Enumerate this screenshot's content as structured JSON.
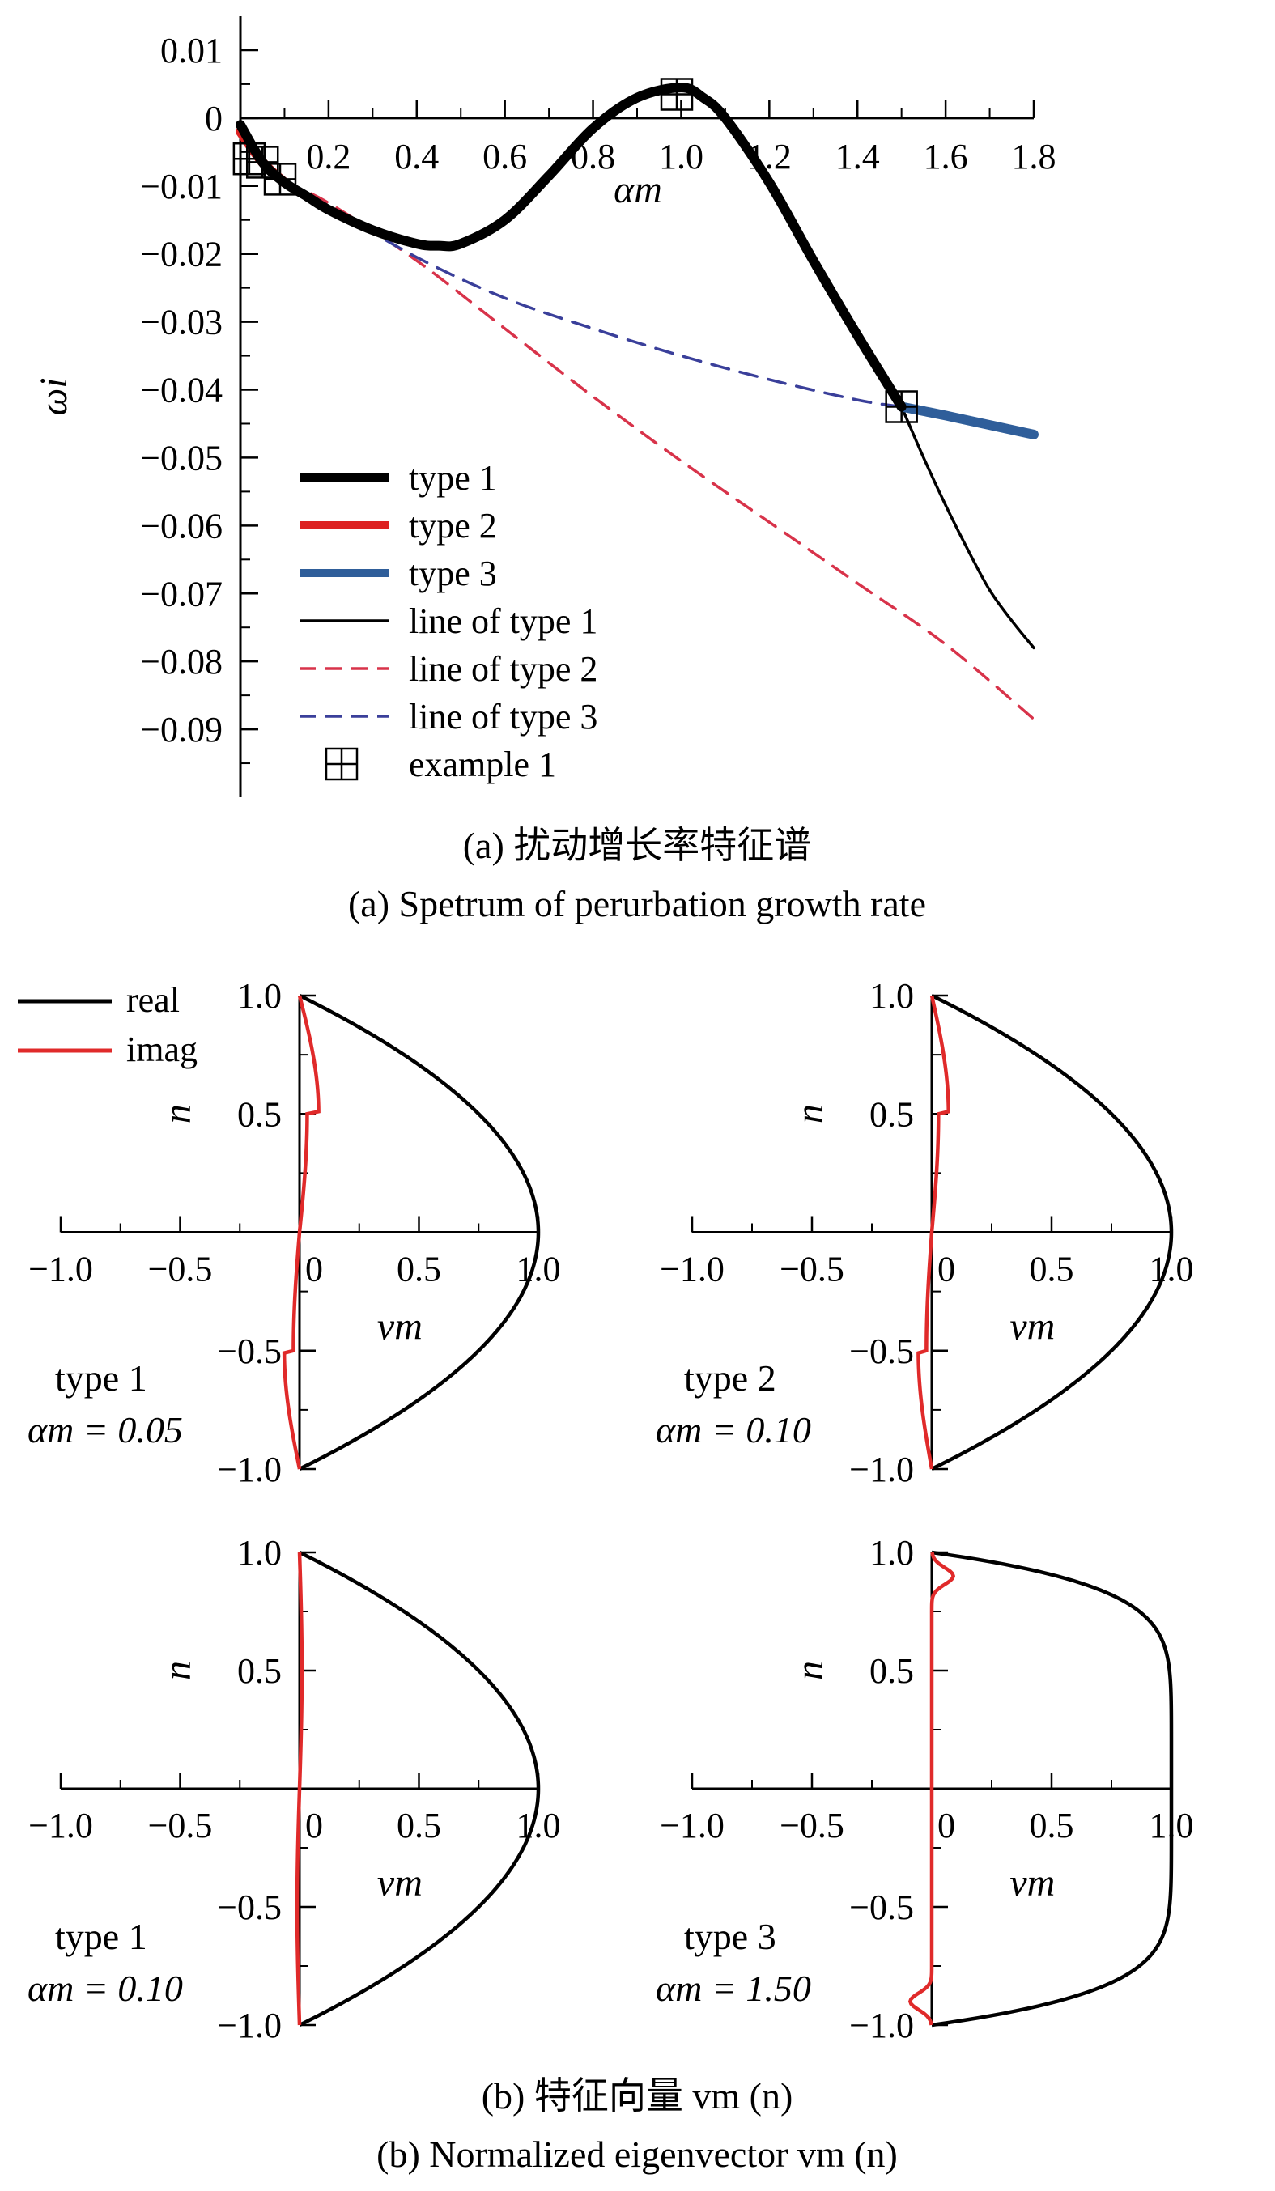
{
  "caption_a_cn": "(a) 扰动增长率特征谱",
  "caption_a_en": "(a) Spetrum of perurbation growth rate",
  "caption_b_cn": "(b) 特征向量 vm (n)",
  "caption_b_en": "(b) Normalized eigenvector vm (n)",
  "chart_data": [
    {
      "type": "line",
      "xlabel": "αm",
      "ylabel": "ωi",
      "xlim": [
        0,
        1.8
      ],
      "ylim": [
        -0.1,
        0.015
      ],
      "xticks": [
        "0.2",
        "0.4",
        "0.6",
        "0.8",
        "1.0",
        "1.2",
        "1.4",
        "1.6",
        "1.8"
      ],
      "yticks": [
        "0.01",
        "0",
        "−0.01",
        "−0.02",
        "−0.03",
        "−0.04",
        "−0.05",
        "−0.06",
        "−0.07",
        "−0.08",
        "−0.09"
      ],
      "legend_position": "bottom-left",
      "series": [
        {
          "name": "type 1",
          "color": "#000000",
          "style": "thick",
          "x": [
            0.0,
            0.05,
            0.1,
            0.15,
            0.2,
            0.3,
            0.4,
            0.45,
            0.5,
            0.6,
            0.7,
            0.8,
            0.9,
            1.0,
            1.05,
            1.1,
            1.2,
            1.3,
            1.4,
            1.5
          ],
          "y": [
            -0.001,
            -0.0065,
            -0.0095,
            -0.0115,
            -0.0135,
            -0.0165,
            -0.0185,
            -0.0188,
            -0.0185,
            -0.015,
            -0.0085,
            -0.0015,
            0.003,
            0.0045,
            0.003,
            0.0,
            -0.0095,
            -0.021,
            -0.032,
            -0.0425
          ]
        },
        {
          "name": "type 2",
          "color": "#dd2222",
          "style": "thick",
          "x": [
            0.0,
            0.05,
            0.1
          ],
          "y": [
            -0.002,
            -0.0065,
            -0.0095
          ]
        },
        {
          "name": "type 3",
          "color": "#2f5e9a",
          "style": "thick",
          "x": [
            1.5,
            1.6,
            1.7,
            1.8
          ],
          "y": [
            -0.0425,
            -0.0438,
            -0.0452,
            -0.0466
          ]
        },
        {
          "name": "line of type 1",
          "color": "#000000",
          "style": "solid",
          "x": [
            1.5,
            1.55,
            1.6,
            1.65,
            1.7,
            1.75,
            1.8
          ],
          "y": [
            -0.0425,
            -0.05,
            -0.057,
            -0.0635,
            -0.0695,
            -0.074,
            -0.078
          ]
        },
        {
          "name": "line of type 2",
          "color": "#d8334a",
          "style": "dashed",
          "x": [
            0.1,
            0.2,
            0.4,
            0.6,
            0.8,
            1.0,
            1.2,
            1.4,
            1.6,
            1.8
          ],
          "y": [
            -0.0095,
            -0.0125,
            -0.021,
            -0.031,
            -0.041,
            -0.0505,
            -0.0595,
            -0.0685,
            -0.0775,
            -0.0885
          ]
        },
        {
          "name": "line of type 3",
          "color": "#3a3f9a",
          "style": "dashed",
          "x": [
            0.1,
            0.2,
            0.4,
            0.6,
            0.8,
            1.0,
            1.2,
            1.4,
            1.5
          ],
          "y": [
            -0.0095,
            -0.013,
            -0.0205,
            -0.0265,
            -0.031,
            -0.035,
            -0.0385,
            -0.0415,
            -0.0425
          ]
        },
        {
          "name": "example 1",
          "type": "scatter",
          "marker": "boxed-plus",
          "color": "#000000",
          "x": [
            0.02,
            0.05,
            0.09,
            0.99,
            1.5
          ],
          "y": [
            -0.006,
            -0.0065,
            -0.009,
            0.0035,
            -0.0425
          ]
        }
      ]
    },
    {
      "type": "line",
      "xlabel": "vm",
      "ylabel": "n",
      "xlim": [
        -1.0,
        1.0
      ],
      "ylim": [
        -1.0,
        1.0
      ],
      "xticks": [
        "−1.0",
        "−0.5",
        "0",
        "0.5",
        "1.0"
      ],
      "yticks": [
        "1.0",
        "0.5",
        "−0.5",
        "−1.0"
      ],
      "annotation_type": "type 1",
      "annotation_alpha": "αm = 0.05",
      "legend": [
        "real",
        "imag"
      ],
      "legend_position": "top-left",
      "series": [
        {
          "name": "real",
          "color": "#000000",
          "shape": "parabolic"
        },
        {
          "name": "imag",
          "color": "#e02a2a",
          "amp": 0.08,
          "kind": "wavy"
        }
      ]
    },
    {
      "type": "line",
      "xlabel": "vm",
      "ylabel": "n",
      "xlim": [
        -1.0,
        1.0
      ],
      "ylim": [
        -1.0,
        1.0
      ],
      "xticks": [
        "−1.0",
        "−0.5",
        "0",
        "0.5",
        "1.0"
      ],
      "yticks": [
        "1.0",
        "0.5",
        "−0.5",
        "−1.0"
      ],
      "annotation_type": "type 2",
      "annotation_alpha": "αm = 0.10",
      "series": [
        {
          "name": "real",
          "color": "#000000",
          "shape": "parabolic"
        },
        {
          "name": "imag",
          "color": "#e02a2a",
          "amp": 0.07,
          "kind": "wavy"
        }
      ]
    },
    {
      "type": "line",
      "xlabel": "vm",
      "ylabel": "n",
      "xlim": [
        -1.0,
        1.0
      ],
      "ylim": [
        -1.0,
        1.0
      ],
      "xticks": [
        "−1.0",
        "−0.5",
        "0",
        "0.5",
        "1.0"
      ],
      "yticks": [
        "1.0",
        "0.5",
        "−0.5",
        "−1.0"
      ],
      "annotation_type": "type 1",
      "annotation_alpha": "αm = 0.10",
      "series": [
        {
          "name": "real",
          "color": "#000000",
          "shape": "parabolic"
        },
        {
          "name": "imag",
          "color": "#e02a2a",
          "amp": 0.01,
          "kind": "flat"
        }
      ]
    },
    {
      "type": "line",
      "xlabel": "vm",
      "ylabel": "n",
      "xlim": [
        -1.0,
        1.0
      ],
      "ylim": [
        -1.0,
        1.0
      ],
      "xticks": [
        "−1.0",
        "−0.5",
        "0",
        "0.5",
        "1.0"
      ],
      "yticks": [
        "1.0",
        "0.5",
        "−0.5",
        "−1.0"
      ],
      "annotation_type": "type 3",
      "annotation_alpha": "αm = 1.50",
      "series": [
        {
          "name": "real",
          "color": "#000000",
          "shape": "plug"
        },
        {
          "name": "imag",
          "color": "#e02a2a",
          "amp": 0.09,
          "kind": "edge"
        }
      ]
    }
  ]
}
